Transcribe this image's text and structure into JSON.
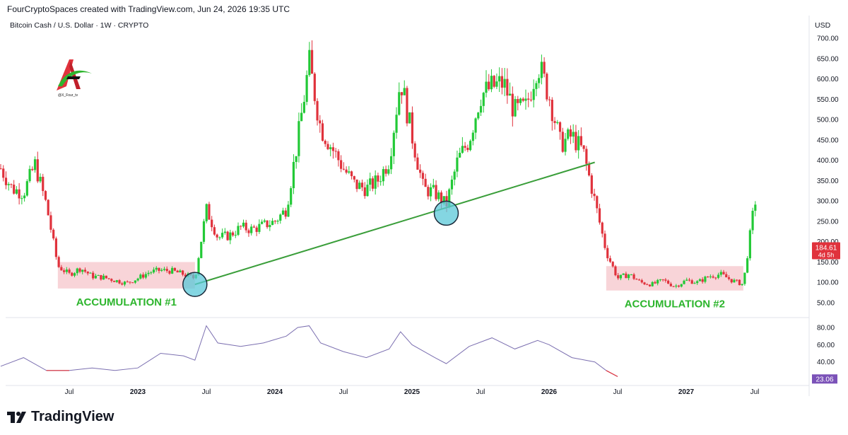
{
  "header": {
    "attribution": "FourCryptoSpaces created with TradingView.com, Jun 24, 2026 19:35 UTC",
    "symbol_line": "Bitcoin Cash / U.S. Dollar · 1W · CRYPTO",
    "currency": "USD",
    "logo_handle": "@X_Four_tv"
  },
  "footer": {
    "brand": "TradingView"
  },
  "colors": {
    "up": "#22c936",
    "down": "#e0323c",
    "trendline": "#3a9e3a",
    "zone_fill": "#f5c2c7",
    "circle_fill": "#5bc8d8",
    "rsi_line": "#7b6fb0",
    "rsi_oversold": "#e0323c",
    "price_tag": "#e0323c",
    "rsi_tag": "#7b52b8"
  },
  "chart_data": [
    {
      "type": "candlestick",
      "title": "Bitcoin Cash / U.S. Dollar · 1W · CRYPTO",
      "ylabel": "USD",
      "ylim": [
        40,
        730
      ],
      "y_ticks": [
        "700.00",
        "650.00",
        "600.00",
        "550.00",
        "500.00",
        "450.00",
        "400.00",
        "350.00",
        "300.00",
        "250.00",
        "200.00",
        "150.00",
        "100.00",
        "50.00"
      ],
      "x_ticks": [
        "Jul",
        "2023",
        "Jul",
        "2024",
        "Jul",
        "2025",
        "Jul",
        "2026",
        "Jul",
        "2027",
        "Jul"
      ],
      "x_tick_dates": [
        "2022-07",
        "2023-01",
        "2023-07",
        "2024-01",
        "2024-07",
        "2025-01",
        "2025-07",
        "2026-01",
        "2026-07",
        "2027-01",
        "2027-07"
      ],
      "close_path": [
        {
          "date": "2022-01",
          "close": 380
        },
        {
          "date": "2022-02",
          "close": 330
        },
        {
          "date": "2022-03",
          "close": 320
        },
        {
          "date": "2022-04",
          "close": 390
        },
        {
          "date": "2022-05",
          "close": 290
        },
        {
          "date": "2022-06",
          "close": 140
        },
        {
          "date": "2022-07",
          "close": 120
        },
        {
          "date": "2022-08",
          "close": 135
        },
        {
          "date": "2022-09",
          "close": 115
        },
        {
          "date": "2022-10",
          "close": 112
        },
        {
          "date": "2022-11",
          "close": 105
        },
        {
          "date": "2022-12",
          "close": 98
        },
        {
          "date": "2023-01",
          "close": 110
        },
        {
          "date": "2023-02",
          "close": 125
        },
        {
          "date": "2023-03",
          "close": 130
        },
        {
          "date": "2023-04",
          "close": 128
        },
        {
          "date": "2023-05",
          "close": 120
        },
        {
          "date": "2023-06",
          "close": 110
        },
        {
          "date": "2023-07",
          "close": 280
        },
        {
          "date": "2023-08",
          "close": 210
        },
        {
          "date": "2023-09",
          "close": 215
        },
        {
          "date": "2023-10",
          "close": 235
        },
        {
          "date": "2023-11",
          "close": 230
        },
        {
          "date": "2023-12",
          "close": 240
        },
        {
          "date": "2024-01",
          "close": 250
        },
        {
          "date": "2024-02",
          "close": 280
        },
        {
          "date": "2024-03",
          "close": 450
        },
        {
          "date": "2024-04",
          "close": 640
        },
        {
          "date": "2024-05",
          "close": 480
        },
        {
          "date": "2024-06",
          "close": 430
        },
        {
          "date": "2024-07",
          "close": 380
        },
        {
          "date": "2024-08",
          "close": 340
        },
        {
          "date": "2024-09",
          "close": 330
        },
        {
          "date": "2024-10",
          "close": 350
        },
        {
          "date": "2024-11",
          "close": 400
        },
        {
          "date": "2024-12",
          "close": 600
        },
        {
          "date": "2025-01",
          "close": 460
        },
        {
          "date": "2025-02",
          "close": 330
        },
        {
          "date": "2025-03",
          "close": 320
        },
        {
          "date": "2025-04",
          "close": 290
        },
        {
          "date": "2025-05",
          "close": 400
        },
        {
          "date": "2025-06",
          "close": 450
        },
        {
          "date": "2025-07",
          "close": 560
        },
        {
          "date": "2025-08",
          "close": 580
        },
        {
          "date": "2025-09",
          "close": 590
        },
        {
          "date": "2025-10",
          "close": 520
        },
        {
          "date": "2025-11",
          "close": 530
        },
        {
          "date": "2025-12",
          "close": 640
        },
        {
          "date": "2026-01",
          "close": 560
        },
        {
          "date": "2026-02",
          "close": 440
        },
        {
          "date": "2026-03",
          "close": 460
        },
        {
          "date": "2026-04",
          "close": 420
        },
        {
          "date": "2026-05",
          "close": 300
        },
        {
          "date": "2026-06",
          "close": 175
        },
        {
          "date": "2026-07",
          "close": 110
        },
        {
          "date": "2026-08",
          "close": 120
        },
        {
          "date": "2026-09",
          "close": 100
        },
        {
          "date": "2026-10",
          "close": 95
        },
        {
          "date": "2026-11",
          "close": 105
        },
        {
          "date": "2026-12",
          "close": 90
        },
        {
          "date": "2027-01",
          "close": 105
        },
        {
          "date": "2027-02",
          "close": 100
        },
        {
          "date": "2027-03",
          "close": 115
        },
        {
          "date": "2027-04",
          "close": 120
        },
        {
          "date": "2027-05",
          "close": 105
        },
        {
          "date": "2027-06",
          "close": 95
        },
        {
          "date": "2027-07",
          "close": 300
        }
      ],
      "last_price": "184.61",
      "countdown": "4d 5h",
      "annotations": {
        "zones": [
          {
            "label": "ACCUMULATION #1",
            "from": "2022-06",
            "to": "2023-06",
            "y_low": 85,
            "y_high": 150
          },
          {
            "label": "ACCUMULATION #2",
            "from": "2026-06",
            "to": "2027-06",
            "y_low": 80,
            "y_high": 140
          }
        ],
        "trendline": {
          "from": {
            "date": "2023-06",
            "value": 95
          },
          "to": {
            "date": "2026-05",
            "value": 395
          }
        },
        "circles": [
          {
            "date": "2023-06",
            "value": 95
          },
          {
            "date": "2025-04",
            "value": 270
          }
        ]
      }
    },
    {
      "type": "line",
      "title": "",
      "y_ticks": [
        "80.00",
        "60.00",
        "40.00"
      ],
      "ylim": [
        20,
        90
      ],
      "last_value": "23.06",
      "points": [
        {
          "date": "2022-01",
          "value": 35
        },
        {
          "date": "2022-03",
          "value": 45
        },
        {
          "date": "2022-05",
          "value": 30
        },
        {
          "date": "2022-07",
          "value": 30
        },
        {
          "date": "2022-09",
          "value": 33
        },
        {
          "date": "2022-11",
          "value": 30
        },
        {
          "date": "2023-01",
          "value": 33
        },
        {
          "date": "2023-03",
          "value": 50
        },
        {
          "date": "2023-05",
          "value": 47
        },
        {
          "date": "2023-06",
          "value": 42
        },
        {
          "date": "2023-07",
          "value": 82
        },
        {
          "date": "2023-08",
          "value": 62
        },
        {
          "date": "2023-10",
          "value": 58
        },
        {
          "date": "2023-12",
          "value": 62
        },
        {
          "date": "2024-02",
          "value": 70
        },
        {
          "date": "2024-03",
          "value": 80
        },
        {
          "date": "2024-04",
          "value": 82
        },
        {
          "date": "2024-05",
          "value": 62
        },
        {
          "date": "2024-07",
          "value": 52
        },
        {
          "date": "2024-09",
          "value": 45
        },
        {
          "date": "2024-11",
          "value": 55
        },
        {
          "date": "2024-12",
          "value": 75
        },
        {
          "date": "2025-01",
          "value": 60
        },
        {
          "date": "2025-03",
          "value": 45
        },
        {
          "date": "2025-04",
          "value": 38
        },
        {
          "date": "2025-06",
          "value": 58
        },
        {
          "date": "2025-08",
          "value": 68
        },
        {
          "date": "2025-10",
          "value": 55
        },
        {
          "date": "2025-12",
          "value": 65
        },
        {
          "date": "2026-01",
          "value": 60
        },
        {
          "date": "2026-03",
          "value": 45
        },
        {
          "date": "2026-05",
          "value": 40
        },
        {
          "date": "2026-06",
          "value": 30
        },
        {
          "date": "2026-07",
          "value": 23
        }
      ]
    }
  ]
}
